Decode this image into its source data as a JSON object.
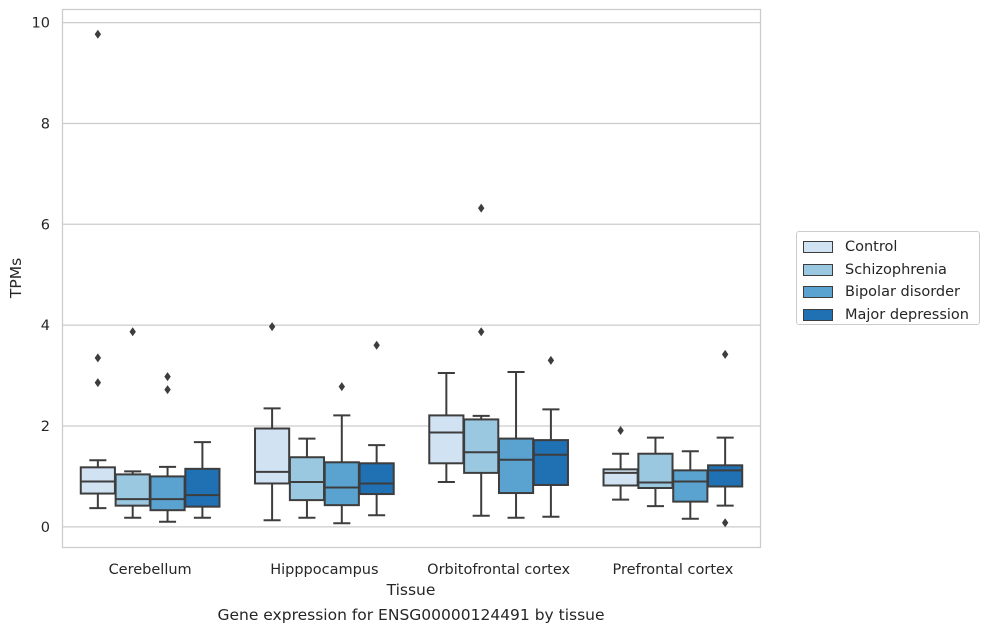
{
  "chart_data": {
    "type": "box",
    "title": "",
    "caption": "Gene expression for ENSG00000124491 by tissue",
    "xlabel": "Tissue",
    "ylabel": "TPMs",
    "ylim": [
      -0.4,
      10.25
    ],
    "yticks": [
      0,
      2,
      4,
      6,
      8,
      10
    ],
    "grid": "horizontal",
    "legend_position": "right",
    "categories": [
      "Cerebellum",
      "Hipppocampus",
      "Orbitofrontal cortex",
      "Prefrontal cortex"
    ],
    "series": [
      {
        "name": "Control",
        "color": "#d1e2f2",
        "boxes": [
          {
            "whisker_low": 0.37,
            "q1": 0.66,
            "median": 0.9,
            "q3": 1.18,
            "whisker_high": 1.32,
            "outliers": [
              3.35,
              2.86,
              9.77
            ]
          },
          {
            "whisker_low": 0.13,
            "q1": 0.86,
            "median": 1.09,
            "q3": 1.95,
            "whisker_high": 2.35,
            "outliers": [
              3.97
            ]
          },
          {
            "whisker_low": 0.89,
            "q1": 1.26,
            "median": 1.87,
            "q3": 2.21,
            "whisker_high": 3.05,
            "outliers": []
          },
          {
            "whisker_low": 0.54,
            "q1": 0.82,
            "median": 1.07,
            "q3": 1.14,
            "whisker_high": 1.45,
            "outliers": [
              1.91
            ]
          }
        ]
      },
      {
        "name": "Schizophrenia",
        "color": "#9ac8e0",
        "boxes": [
          {
            "whisker_low": 0.18,
            "q1": 0.42,
            "median": 0.55,
            "q3": 1.04,
            "whisker_high": 1.1,
            "outliers": [
              3.87
            ]
          },
          {
            "whisker_low": 0.18,
            "q1": 0.53,
            "median": 0.89,
            "q3": 1.38,
            "whisker_high": 1.75,
            "outliers": []
          },
          {
            "whisker_low": 0.22,
            "q1": 1.07,
            "median": 1.48,
            "q3": 2.13,
            "whisker_high": 2.2,
            "outliers": [
              3.87,
              6.32
            ]
          },
          {
            "whisker_low": 0.41,
            "q1": 0.77,
            "median": 0.88,
            "q3": 1.45,
            "whisker_high": 1.77,
            "outliers": []
          }
        ]
      },
      {
        "name": "Bipolar disorder",
        "color": "#5aa2cf",
        "boxes": [
          {
            "whisker_low": 0.1,
            "q1": 0.33,
            "median": 0.55,
            "q3": 1.0,
            "whisker_high": 1.19,
            "outliers": [
              2.72,
              2.98
            ]
          },
          {
            "whisker_low": 0.07,
            "q1": 0.43,
            "median": 0.78,
            "q3": 1.28,
            "whisker_high": 2.21,
            "outliers": [
              2.78
            ]
          },
          {
            "whisker_low": 0.18,
            "q1": 0.67,
            "median": 1.33,
            "q3": 1.75,
            "whisker_high": 3.07,
            "outliers": []
          },
          {
            "whisker_low": 0.16,
            "q1": 0.5,
            "median": 0.9,
            "q3": 1.12,
            "whisker_high": 1.5,
            "outliers": []
          }
        ]
      },
      {
        "name": "Major depression",
        "color": "#2070b4",
        "boxes": [
          {
            "whisker_low": 0.18,
            "q1": 0.4,
            "median": 0.63,
            "q3": 1.15,
            "whisker_high": 1.68,
            "outliers": []
          },
          {
            "whisker_low": 0.23,
            "q1": 0.65,
            "median": 0.86,
            "q3": 1.26,
            "whisker_high": 1.62,
            "outliers": [
              3.6
            ]
          },
          {
            "whisker_low": 0.2,
            "q1": 0.83,
            "median": 1.43,
            "q3": 1.72,
            "whisker_high": 2.33,
            "outliers": [
              3.3
            ]
          },
          {
            "whisker_low": 0.42,
            "q1": 0.8,
            "median": 1.12,
            "q3": 1.22,
            "whisker_high": 1.77,
            "outliers": [
              3.42,
              0.08
            ]
          }
        ]
      }
    ]
  }
}
